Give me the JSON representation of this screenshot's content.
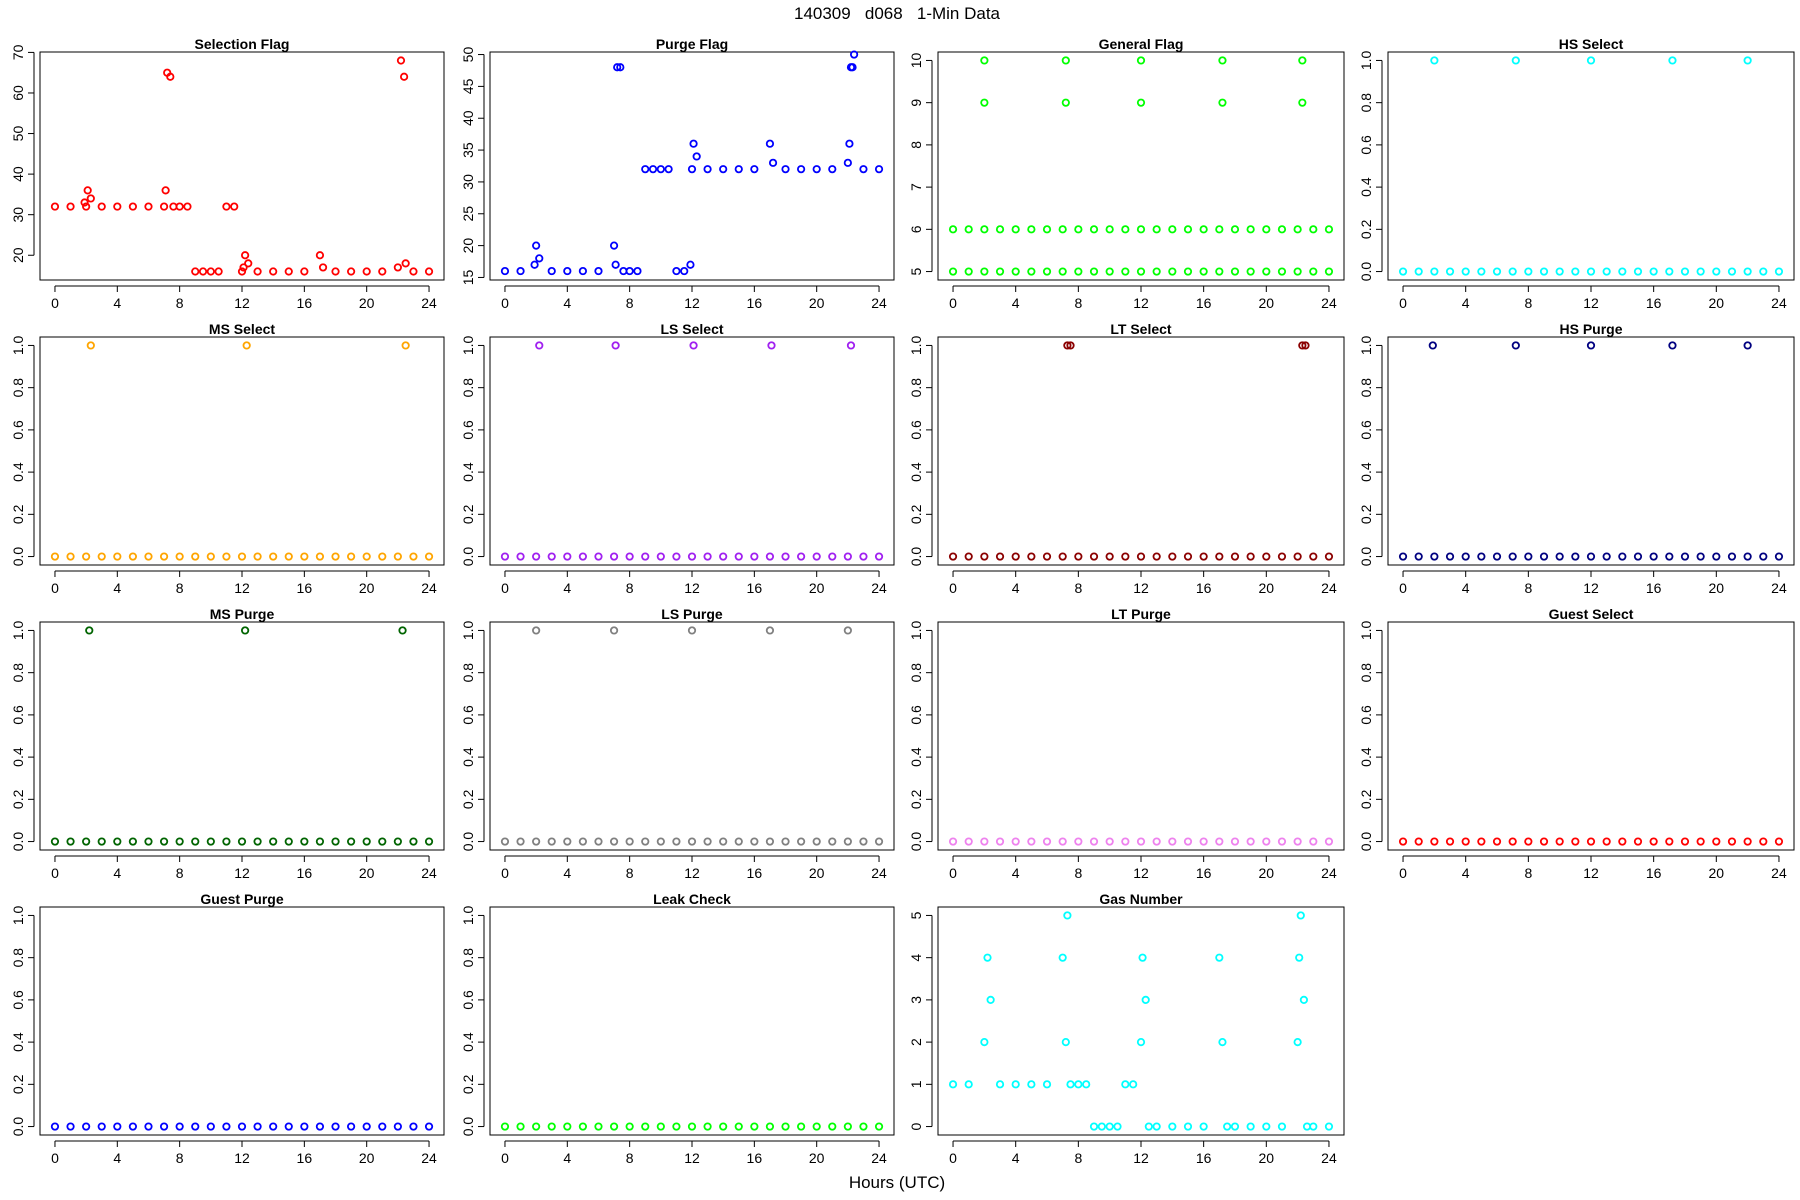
{
  "title": "140309   d068   1-Min Data",
  "xlabel": "Hours (UTC)",
  "chart_data": [
    {
      "type": "scatter",
      "title": "Selection Flag",
      "color": "#ff0000",
      "xlim": [
        -0.96,
        24.96
      ],
      "xticks": [
        0,
        4,
        8,
        12,
        16,
        20,
        24
      ],
      "ylim": [
        13.9,
        70.1
      ],
      "yticks": [
        20,
        30,
        40,
        50,
        60,
        70
      ],
      "x": [
        0,
        1,
        1.9,
        2,
        2.1,
        2.3,
        3,
        4,
        5,
        6,
        7,
        7.1,
        7.2,
        7.4,
        7.6,
        8,
        8.5,
        9,
        9.5,
        10,
        10.5,
        11,
        11.5,
        12,
        12.1,
        12.2,
        12.4,
        13,
        14,
        15,
        16,
        17,
        17.2,
        18,
        19,
        20,
        21,
        22,
        22.2,
        22.4,
        22.5,
        23,
        24
      ],
      "values": [
        32,
        32,
        33,
        32,
        36,
        34,
        32,
        32,
        32,
        32,
        32,
        36,
        65,
        64,
        32,
        32,
        32,
        16,
        16,
        16,
        16,
        32,
        32,
        16,
        17,
        20,
        18,
        16,
        16,
        16,
        16,
        20,
        17,
        16,
        16,
        16,
        16,
        17,
        68,
        64,
        18,
        16,
        16
      ]
    },
    {
      "type": "scatter",
      "title": "Purge Flag",
      "color": "#0000ff",
      "xlim": [
        -0.96,
        24.96
      ],
      "xticks": [
        0,
        4,
        8,
        12,
        16,
        20,
        24
      ],
      "ylim": [
        14.6,
        50.4
      ],
      "yticks": [
        15,
        20,
        25,
        30,
        35,
        40,
        45,
        50
      ],
      "x": [
        0,
        1,
        1.9,
        2,
        2.2,
        3,
        4,
        5,
        6,
        7,
        7.1,
        7.2,
        7.4,
        7.6,
        8,
        8.5,
        9,
        9.5,
        10,
        10.5,
        11,
        11.5,
        11.9,
        12,
        12.1,
        12.3,
        13,
        14,
        15,
        16,
        17,
        17.2,
        18,
        19,
        20,
        21,
        22,
        22.1,
        22.2,
        22.3,
        22.4,
        23,
        24
      ],
      "values": [
        16,
        16,
        17,
        20,
        18,
        16,
        16,
        16,
        16,
        20,
        17,
        48,
        48,
        16,
        16,
        16,
        32,
        32,
        32,
        32,
        16,
        16,
        17,
        32,
        36,
        34,
        32,
        32,
        32,
        32,
        36,
        33,
        32,
        32,
        32,
        32,
        33,
        36,
        48,
        48,
        50,
        32,
        32
      ]
    },
    {
      "type": "scatter",
      "title": "General Flag",
      "color": "#00ff00",
      "xlim": [
        -0.96,
        24.96
      ],
      "xticks": [
        0,
        4,
        8,
        12,
        16,
        20,
        24
      ],
      "ylim": [
        4.8,
        10.2
      ],
      "yticks": [
        5,
        6,
        7,
        8,
        9,
        10
      ],
      "x": [
        0,
        0,
        1,
        1,
        2,
        2,
        3,
        3,
        4,
        4,
        5,
        5,
        6,
        6,
        7,
        7,
        8,
        8,
        9,
        9,
        10,
        10,
        11,
        11,
        12,
        12,
        13,
        13,
        14,
        14,
        15,
        15,
        16,
        16,
        17,
        17,
        18,
        18,
        19,
        19,
        20,
        20,
        21,
        21,
        22,
        22,
        23,
        23,
        24,
        24,
        2,
        2,
        7.2,
        7.2,
        12,
        12,
        17.2,
        17.2,
        22.3,
        22.3
      ],
      "values": [
        5,
        6,
        5,
        6,
        5,
        6,
        5,
        6,
        5,
        6,
        5,
        6,
        5,
        6,
        5,
        6,
        5,
        6,
        5,
        6,
        5,
        6,
        5,
        6,
        5,
        6,
        5,
        6,
        5,
        6,
        5,
        6,
        5,
        6,
        5,
        6,
        5,
        6,
        5,
        6,
        5,
        6,
        5,
        6,
        5,
        6,
        5,
        6,
        5,
        6,
        9,
        10,
        9,
        10,
        9,
        10,
        9,
        10,
        9,
        10
      ]
    },
    {
      "type": "scatter",
      "title": "HS Select",
      "color": "#00ffff",
      "xlim": [
        -0.96,
        24.96
      ],
      "xticks": [
        0,
        4,
        8,
        12,
        16,
        20,
        24
      ],
      "ylim": [
        -0.04,
        1.04
      ],
      "yticks": [
        {
          "value": 0,
          "label": "0.0"
        },
        0.2,
        0.4,
        0.6,
        0.8,
        {
          "value": 1,
          "label": "1.0"
        }
      ],
      "x": [
        0,
        1,
        2,
        3,
        4,
        5,
        6,
        7,
        8,
        9,
        10,
        11,
        12,
        13,
        14,
        15,
        16,
        17,
        18,
        19,
        20,
        21,
        22,
        23,
        24,
        2,
        7.2,
        12,
        17.2,
        22
      ],
      "values": [
        0,
        0,
        0,
        0,
        0,
        0,
        0,
        0,
        0,
        0,
        0,
        0,
        0,
        0,
        0,
        0,
        0,
        0,
        0,
        0,
        0,
        0,
        0,
        0,
        0,
        1,
        1,
        1,
        1,
        1
      ]
    },
    {
      "type": "scatter",
      "title": "MS Select",
      "color": "#ffa500",
      "xlim": [
        -0.96,
        24.96
      ],
      "xticks": [
        0,
        4,
        8,
        12,
        16,
        20,
        24
      ],
      "ylim": [
        -0.04,
        1.04
      ],
      "yticks": [
        {
          "value": 0,
          "label": "0.0"
        },
        0.2,
        0.4,
        0.6,
        0.8,
        {
          "value": 1,
          "label": "1.0"
        }
      ],
      "x": [
        0,
        1,
        2,
        3,
        4,
        5,
        6,
        7,
        8,
        9,
        10,
        11,
        12,
        13,
        14,
        15,
        16,
        17,
        18,
        19,
        20,
        21,
        22,
        23,
        24,
        2.3,
        12.3,
        22.5
      ],
      "values": [
        0,
        0,
        0,
        0,
        0,
        0,
        0,
        0,
        0,
        0,
        0,
        0,
        0,
        0,
        0,
        0,
        0,
        0,
        0,
        0,
        0,
        0,
        0,
        0,
        0,
        1,
        1,
        1
      ]
    },
    {
      "type": "scatter",
      "title": "LS Select",
      "color": "#a020f0",
      "xlim": [
        -0.96,
        24.96
      ],
      "xticks": [
        0,
        4,
        8,
        12,
        16,
        20,
        24
      ],
      "ylim": [
        -0.04,
        1.04
      ],
      "yticks": [
        {
          "value": 0,
          "label": "0.0"
        },
        0.2,
        0.4,
        0.6,
        0.8,
        {
          "value": 1,
          "label": "1.0"
        }
      ],
      "x": [
        0,
        1,
        2,
        3,
        4,
        5,
        6,
        7,
        8,
        9,
        10,
        11,
        12,
        13,
        14,
        15,
        16,
        17,
        18,
        19,
        20,
        21,
        22,
        23,
        24,
        2.2,
        7.1,
        12.1,
        17.1,
        22.2
      ],
      "values": [
        0,
        0,
        0,
        0,
        0,
        0,
        0,
        0,
        0,
        0,
        0,
        0,
        0,
        0,
        0,
        0,
        0,
        0,
        0,
        0,
        0,
        0,
        0,
        0,
        0,
        1,
        1,
        1,
        1,
        1
      ]
    },
    {
      "type": "scatter",
      "title": "LT Select",
      "color": "#8b0000",
      "xlim": [
        -0.96,
        24.96
      ],
      "xticks": [
        0,
        4,
        8,
        12,
        16,
        20,
        24
      ],
      "ylim": [
        -0.04,
        1.04
      ],
      "yticks": [
        {
          "value": 0,
          "label": "0.0"
        },
        0.2,
        0.4,
        0.6,
        0.8,
        {
          "value": 1,
          "label": "1.0"
        }
      ],
      "x": [
        0,
        1,
        2,
        3,
        4,
        5,
        6,
        7,
        8,
        9,
        10,
        11,
        12,
        13,
        14,
        15,
        16,
        17,
        18,
        19,
        20,
        21,
        22,
        23,
        24,
        7.3,
        7.5,
        22.3,
        22.5
      ],
      "values": [
        0,
        0,
        0,
        0,
        0,
        0,
        0,
        0,
        0,
        0,
        0,
        0,
        0,
        0,
        0,
        0,
        0,
        0,
        0,
        0,
        0,
        0,
        0,
        0,
        0,
        1,
        1,
        1,
        1
      ]
    },
    {
      "type": "scatter",
      "title": "HS Purge",
      "color": "#000080",
      "xlim": [
        -0.96,
        24.96
      ],
      "xticks": [
        0,
        4,
        8,
        12,
        16,
        20,
        24
      ],
      "ylim": [
        -0.04,
        1.04
      ],
      "yticks": [
        {
          "value": 0,
          "label": "0.0"
        },
        0.2,
        0.4,
        0.6,
        0.8,
        {
          "value": 1,
          "label": "1.0"
        }
      ],
      "x": [
        0,
        1,
        2,
        3,
        4,
        5,
        6,
        7,
        8,
        9,
        10,
        11,
        12,
        13,
        14,
        15,
        16,
        17,
        18,
        19,
        20,
        21,
        22,
        23,
        24,
        1.9,
        7.2,
        12,
        17.2,
        22
      ],
      "values": [
        0,
        0,
        0,
        0,
        0,
        0,
        0,
        0,
        0,
        0,
        0,
        0,
        0,
        0,
        0,
        0,
        0,
        0,
        0,
        0,
        0,
        0,
        0,
        0,
        0,
        1,
        1,
        1,
        1,
        1
      ]
    },
    {
      "type": "scatter",
      "title": "MS Purge",
      "color": "#006400",
      "xlim": [
        -0.96,
        24.96
      ],
      "xticks": [
        0,
        4,
        8,
        12,
        16,
        20,
        24
      ],
      "ylim": [
        -0.04,
        1.04
      ],
      "yticks": [
        {
          "value": 0,
          "label": "0.0"
        },
        0.2,
        0.4,
        0.6,
        0.8,
        {
          "value": 1,
          "label": "1.0"
        }
      ],
      "x": [
        0,
        1,
        2,
        3,
        4,
        5,
        6,
        7,
        8,
        9,
        10,
        11,
        12,
        13,
        14,
        15,
        16,
        17,
        18,
        19,
        20,
        21,
        22,
        23,
        24,
        2.2,
        12.2,
        22.3
      ],
      "values": [
        0,
        0,
        0,
        0,
        0,
        0,
        0,
        0,
        0,
        0,
        0,
        0,
        0,
        0,
        0,
        0,
        0,
        0,
        0,
        0,
        0,
        0,
        0,
        0,
        0,
        1,
        1,
        1
      ]
    },
    {
      "type": "scatter",
      "title": "LS Purge",
      "color": "#808080",
      "xlim": [
        -0.96,
        24.96
      ],
      "xticks": [
        0,
        4,
        8,
        12,
        16,
        20,
        24
      ],
      "ylim": [
        -0.04,
        1.04
      ],
      "yticks": [
        {
          "value": 0,
          "label": "0.0"
        },
        0.2,
        0.4,
        0.6,
        0.8,
        {
          "value": 1,
          "label": "1.0"
        }
      ],
      "x": [
        0,
        1,
        2,
        3,
        4,
        5,
        6,
        7,
        8,
        9,
        10,
        11,
        12,
        13,
        14,
        15,
        16,
        17,
        18,
        19,
        20,
        21,
        22,
        23,
        24,
        2,
        7,
        12,
        17,
        22
      ],
      "values": [
        0,
        0,
        0,
        0,
        0,
        0,
        0,
        0,
        0,
        0,
        0,
        0,
        0,
        0,
        0,
        0,
        0,
        0,
        0,
        0,
        0,
        0,
        0,
        0,
        0,
        1,
        1,
        1,
        1,
        1
      ]
    },
    {
      "type": "scatter",
      "title": "LT Purge",
      "color": "#ee82ee",
      "xlim": [
        -0.96,
        24.96
      ],
      "xticks": [
        0,
        4,
        8,
        12,
        16,
        20,
        24
      ],
      "ylim": [
        -0.04,
        1.04
      ],
      "yticks": [
        {
          "value": 0,
          "label": "0.0"
        },
        0.2,
        0.4,
        0.6,
        0.8,
        {
          "value": 1,
          "label": "1.0"
        }
      ],
      "x": [
        0,
        1,
        2,
        3,
        4,
        5,
        6,
        7,
        8,
        9,
        10,
        11,
        12,
        13,
        14,
        15,
        16,
        17,
        18,
        19,
        20,
        21,
        22,
        23,
        24
      ],
      "values": [
        0,
        0,
        0,
        0,
        0,
        0,
        0,
        0,
        0,
        0,
        0,
        0,
        0,
        0,
        0,
        0,
        0,
        0,
        0,
        0,
        0,
        0,
        0,
        0,
        0
      ]
    },
    {
      "type": "scatter",
      "title": "Guest Select",
      "color": "#ff0000",
      "xlim": [
        -0.96,
        24.96
      ],
      "xticks": [
        0,
        4,
        8,
        12,
        16,
        20,
        24
      ],
      "ylim": [
        -0.04,
        1.04
      ],
      "yticks": [
        {
          "value": 0,
          "label": "0.0"
        },
        0.2,
        0.4,
        0.6,
        0.8,
        {
          "value": 1,
          "label": "1.0"
        }
      ],
      "x": [
        0,
        1,
        2,
        3,
        4,
        5,
        6,
        7,
        8,
        9,
        10,
        11,
        12,
        13,
        14,
        15,
        16,
        17,
        18,
        19,
        20,
        21,
        22,
        23,
        24
      ],
      "values": [
        0,
        0,
        0,
        0,
        0,
        0,
        0,
        0,
        0,
        0,
        0,
        0,
        0,
        0,
        0,
        0,
        0,
        0,
        0,
        0,
        0,
        0,
        0,
        0,
        0
      ]
    },
    {
      "type": "scatter",
      "title": "Guest Purge",
      "color": "#0000ff",
      "xlim": [
        -0.96,
        24.96
      ],
      "xticks": [
        0,
        4,
        8,
        12,
        16,
        20,
        24
      ],
      "ylim": [
        -0.04,
        1.04
      ],
      "yticks": [
        {
          "value": 0,
          "label": "0.0"
        },
        0.2,
        0.4,
        0.6,
        0.8,
        {
          "value": 1,
          "label": "1.0"
        }
      ],
      "x": [
        0,
        1,
        2,
        3,
        4,
        5,
        6,
        7,
        8,
        9,
        10,
        11,
        12,
        13,
        14,
        15,
        16,
        17,
        18,
        19,
        20,
        21,
        22,
        23,
        24
      ],
      "values": [
        0,
        0,
        0,
        0,
        0,
        0,
        0,
        0,
        0,
        0,
        0,
        0,
        0,
        0,
        0,
        0,
        0,
        0,
        0,
        0,
        0,
        0,
        0,
        0,
        0
      ]
    },
    {
      "type": "scatter",
      "title": "Leak Check",
      "color": "#00ff00",
      "xlim": [
        -0.96,
        24.96
      ],
      "xticks": [
        0,
        4,
        8,
        12,
        16,
        20,
        24
      ],
      "ylim": [
        -0.04,
        1.04
      ],
      "yticks": [
        {
          "value": 0,
          "label": "0.0"
        },
        0.2,
        0.4,
        0.6,
        0.8,
        {
          "value": 1,
          "label": "1.0"
        }
      ],
      "x": [
        0,
        1,
        2,
        3,
        4,
        5,
        6,
        7,
        8,
        9,
        10,
        11,
        12,
        13,
        14,
        15,
        16,
        17,
        18,
        19,
        20,
        21,
        22,
        23,
        24
      ],
      "values": [
        0,
        0,
        0,
        0,
        0,
        0,
        0,
        0,
        0,
        0,
        0,
        0,
        0,
        0,
        0,
        0,
        0,
        0,
        0,
        0,
        0,
        0,
        0,
        0,
        0
      ]
    },
    {
      "type": "scatter",
      "title": "Gas Number",
      "color": "#00ffff",
      "xlim": [
        -0.96,
        24.96
      ],
      "xticks": [
        0,
        4,
        8,
        12,
        16,
        20,
        24
      ],
      "ylim": [
        -0.2,
        5.2
      ],
      "yticks": [
        0,
        1,
        2,
        3,
        4,
        5
      ],
      "x": [
        0,
        1,
        2,
        2.2,
        2.4,
        3,
        4,
        5,
        6,
        7,
        7.2,
        7.3,
        7.5,
        8,
        8.5,
        9,
        9.5,
        10,
        10.5,
        11,
        11.5,
        12,
        12.1,
        12.3,
        12.5,
        13,
        14,
        15,
        16,
        17,
        17.2,
        17.5,
        18,
        19,
        20,
        21,
        22,
        22.1,
        22.2,
        22.4,
        22.6,
        23,
        24
      ],
      "values": [
        1,
        1,
        2,
        4,
        3,
        1,
        1,
        1,
        1,
        4,
        2,
        5,
        1,
        1,
        1,
        0,
        0,
        0,
        0,
        1,
        1,
        2,
        4,
        3,
        0,
        0,
        0,
        0,
        0,
        4,
        2,
        0,
        0,
        0,
        0,
        0,
        2,
        4,
        5,
        3,
        0,
        0,
        0
      ]
    }
  ]
}
